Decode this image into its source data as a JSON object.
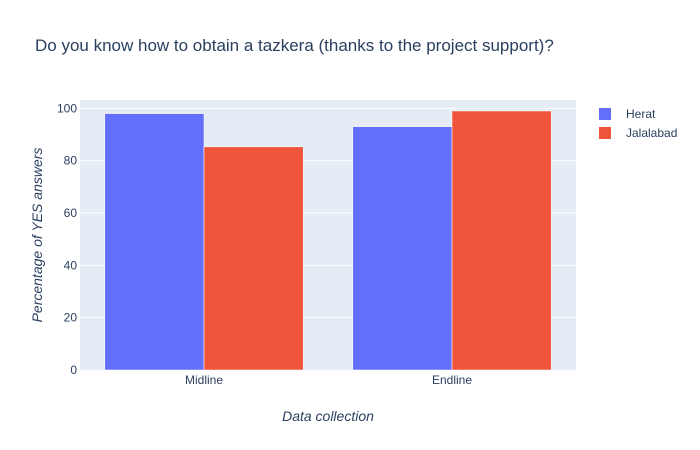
{
  "chart_data": {
    "type": "bar",
    "title": "Do you know how to obtain a tazkera (thanks to the project support)?",
    "xlabel": "Data collection",
    "ylabel": "Percentage of YES answers",
    "categories": [
      "Midline",
      "Endline"
    ],
    "series": [
      {
        "name": "Herat",
        "color": "#636efa",
        "values": [
          98,
          93
        ]
      },
      {
        "name": "Jalalabad",
        "color": "#ef553b",
        "values": [
          85.3,
          99
        ]
      }
    ],
    "ylim": [
      0,
      103.2
    ],
    "yticks": [
      0,
      20,
      40,
      60,
      80,
      100
    ],
    "grid": true,
    "legend_position": "top-right",
    "plot_background": "#e5ecf6"
  }
}
